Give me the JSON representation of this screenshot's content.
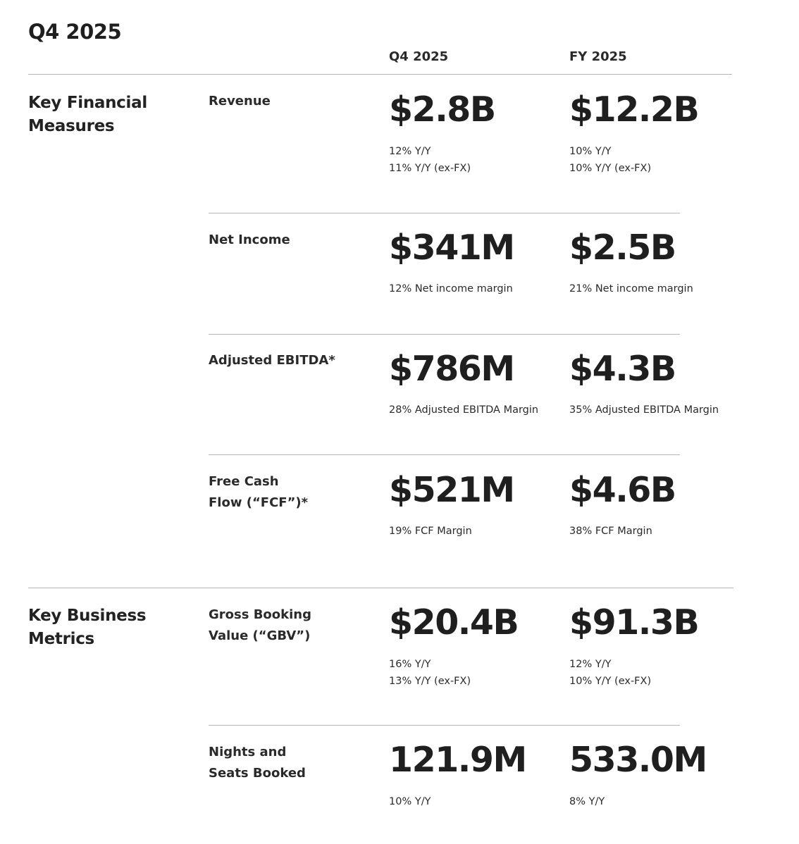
{
  "page_title": "Q4 2025",
  "columns": [
    "Q4 2025",
    "FY 2025"
  ],
  "sections": [
    {
      "label": "Key Financial\nMeasures",
      "metrics": [
        {
          "label": "Revenue",
          "q4_value": "$2.8B",
          "q4_sub": "12% Y/Y\n11% Y/Y (ex-FX)",
          "fy_value": "$12.2B",
          "fy_sub": "10% Y/Y\n10% Y/Y (ex-FX)"
        },
        {
          "label": "Net Income",
          "q4_value": "$341M",
          "q4_sub": "12% Net income margin",
          "fy_value": "$2.5B",
          "fy_sub": "21% Net income margin"
        },
        {
          "label": "Adjusted EBITDA*",
          "q4_value": "$786M",
          "q4_sub": "28% Adjusted EBITDA Margin",
          "fy_value": "$4.3B",
          "fy_sub": "35% Adjusted EBITDA Margin"
        },
        {
          "label": "Free Cash\nFlow (“FCF”)*",
          "q4_value": "$521M",
          "q4_sub": "19% FCF Margin",
          "fy_value": "$4.6B",
          "fy_sub": "38% FCF Margin"
        }
      ]
    },
    {
      "label": "Key Business\nMetrics",
      "metrics": [
        {
          "label": "Gross Booking\nValue (“GBV”)",
          "q4_value": "$20.4B",
          "q4_sub": "16% Y/Y\n13% Y/Y (ex-FX)",
          "fy_value": "$91.3B",
          "fy_sub": "12% Y/Y\n10% Y/Y (ex-FX)"
        },
        {
          "label": "Nights and\nSeats Booked",
          "q4_value": "121.9M",
          "q4_sub": "10% Y/Y",
          "fy_value": "533.0M",
          "fy_sub": "8% Y/Y"
        }
      ]
    }
  ]
}
